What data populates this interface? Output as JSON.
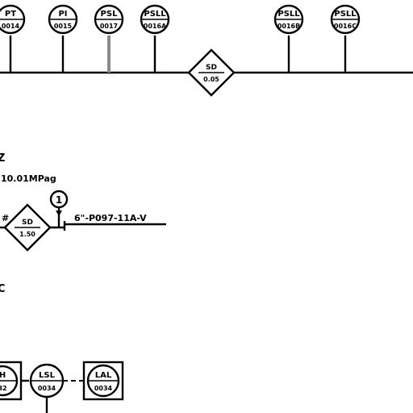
{
  "instruments": [
    {
      "tag": "PT",
      "number": "0014"
    },
    {
      "tag": "PI",
      "number": "0015"
    },
    {
      "tag": "PSL",
      "number": "0017"
    },
    {
      "tag": "PSLL",
      "number": "0016A"
    },
    {
      "tag": "PSLL",
      "number": "0016B"
    },
    {
      "tag": "PSLL",
      "number": "0016C"
    }
  ],
  "interlock_top": {
    "top": "SD",
    "bottom": "0.05"
  },
  "interlock_mid": {
    "top": "SD",
    "bottom": "1.50"
  },
  "pressure_text": "10.01MPag",
  "edge_text_1": "Z",
  "edge_text_2": "C",
  "hash_mark": "#",
  "note_number": "1",
  "line_label": "6\"-P097-11A-V",
  "bottom_instruments": {
    "partial_left": {
      "tag": "H",
      "number": "32"
    },
    "lsl": {
      "tag": "LSL",
      "number": "0034"
    },
    "lal": {
      "tag": "LAL",
      "number": "0034"
    }
  },
  "colors": {
    "line": "#000000",
    "leader_gray": "#808080",
    "background": "#ffffff"
  }
}
